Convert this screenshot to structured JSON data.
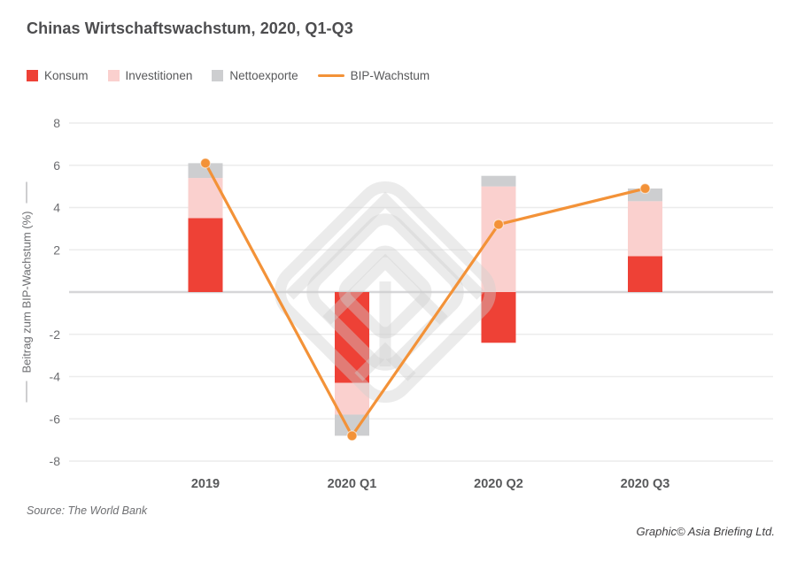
{
  "title": "Chinas Wirtschaftswachstum, 2020, Q1-Q3",
  "chart_data": {
    "type": "bar",
    "subtype": "stacked-bars-with-line-overlay",
    "title": "Chinas Wirtschaftswachstum, 2020, Q1-Q3",
    "categories": [
      "2019",
      "2020 Q1",
      "2020 Q2",
      "2020 Q3"
    ],
    "series": [
      {
        "name": "Konsum",
        "color": "#ee4136",
        "values": [
          3.5,
          -4.3,
          -2.4,
          1.7
        ]
      },
      {
        "name": "Investitionen",
        "color": "#fad0ce",
        "values": [
          1.9,
          -1.5,
          5.0,
          2.6
        ]
      },
      {
        "name": "Nettoexporte",
        "color": "#cdced0",
        "values": [
          0.7,
          -1.0,
          0.5,
          0.6
        ]
      }
    ],
    "line_series": {
      "name": "BIP-Wachstum",
      "color": "#f39238",
      "values": [
        6.1,
        -6.8,
        3.2,
        4.9
      ]
    },
    "xlabel": "",
    "ylabel": "Beitrag zum BIP-Wachstum (%)",
    "ylim": [
      -8,
      8
    ],
    "yticks": [
      8,
      6,
      4,
      2,
      0,
      -2,
      -4,
      -6,
      -8
    ],
    "ytick_labels": [
      "8",
      "6",
      "4",
      "2",
      "",
      "-2",
      "-4",
      "-6",
      "-8"
    ],
    "grid": true,
    "legend_position": "top-left",
    "colors": {
      "grid": "#ececec",
      "zero_line": "#d6d6d8",
      "tick_text": "#6d6e71",
      "category_text": "#58595b",
      "watermark": "#cfcfcf"
    }
  },
  "source": "Source: The World Bank",
  "credit": "Graphic© Asia Briefing Ltd."
}
